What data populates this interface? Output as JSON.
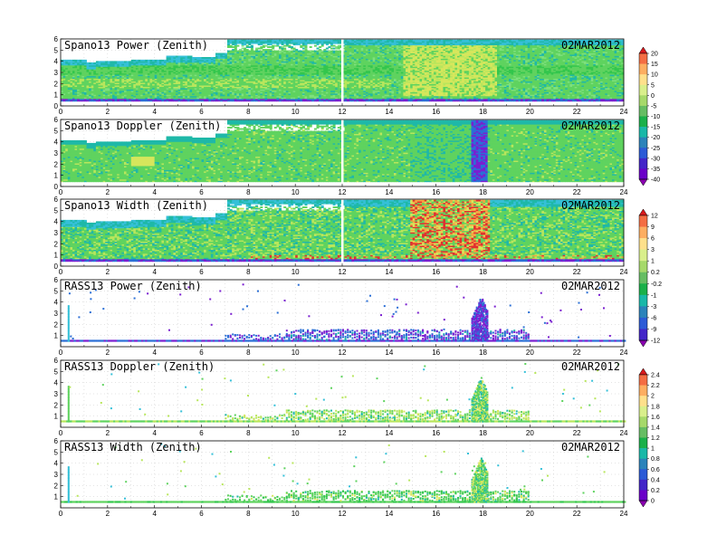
{
  "figure": {
    "date_label": "02MAR2012"
  },
  "chart_data": [
    {
      "type": "heatmap",
      "title": "Spano13 Power (Zenith)",
      "date": "02MAR2012",
      "x": {
        "min": 0,
        "max": 24,
        "ticks": [
          0,
          2,
          4,
          6,
          8,
          10,
          12,
          14,
          16,
          18,
          20,
          22,
          24
        ]
      },
      "y": {
        "min": 0,
        "max": 6,
        "ticks": [
          0,
          1,
          2,
          3,
          4,
          5,
          6
        ]
      },
      "colorbar": "cb1",
      "pattern": "spano_power"
    },
    {
      "type": "heatmap",
      "title": "Spano13 Doppler (Zenith)",
      "date": "02MAR2012",
      "x": {
        "min": 0,
        "max": 24,
        "ticks": [
          0,
          2,
          4,
          6,
          8,
          10,
          12,
          14,
          16,
          18,
          20,
          22,
          24
        ]
      },
      "y": {
        "min": 0,
        "max": 6,
        "ticks": [
          0,
          1,
          2,
          3,
          4,
          5,
          6
        ]
      },
      "colorbar": "cb1",
      "pattern": "spano_doppler"
    },
    {
      "type": "heatmap",
      "title": "Spano13 Width (Zenith)",
      "date": "02MAR2012",
      "x": {
        "min": 0,
        "max": 24,
        "ticks": [
          0,
          2,
          4,
          6,
          8,
          10,
          12,
          14,
          16,
          18,
          20,
          22,
          24
        ]
      },
      "y": {
        "min": 0,
        "max": 6,
        "ticks": [
          0,
          1,
          2,
          3,
          4,
          5,
          6
        ]
      },
      "colorbar": "cb2",
      "pattern": "spano_width"
    },
    {
      "type": "heatmap",
      "title": "RASS13 Power (Zenith)",
      "date": "02MAR2012",
      "x": {
        "min": 0,
        "max": 24,
        "ticks": [
          0,
          2,
          4,
          6,
          8,
          10,
          12,
          14,
          16,
          18,
          20,
          22,
          24
        ]
      },
      "y": {
        "min": 0,
        "max": 6,
        "ticks": [
          1,
          2,
          3,
          4,
          5,
          6
        ]
      },
      "colorbar": "cb2",
      "pattern": "rass_power"
    },
    {
      "type": "heatmap",
      "title": "RASS13 Doppler (Zenith)",
      "date": "02MAR2012",
      "x": {
        "min": 0,
        "max": 24,
        "ticks": [
          0,
          2,
          4,
          6,
          8,
          10,
          12,
          14,
          16,
          18,
          20,
          22,
          24
        ]
      },
      "y": {
        "min": 0,
        "max": 6,
        "ticks": [
          1,
          2,
          3,
          4,
          5,
          6
        ]
      },
      "colorbar": "cb3",
      "pattern": "rass_doppler"
    },
    {
      "type": "heatmap",
      "title": "RASS13 Width (Zenith)",
      "date": "02MAR2012",
      "x": {
        "min": 0,
        "max": 24,
        "ticks": [
          0,
          2,
          4,
          6,
          8,
          10,
          12,
          14,
          16,
          18,
          20,
          22,
          24
        ]
      },
      "y": {
        "min": 0,
        "max": 6,
        "ticks": [
          1,
          2,
          3,
          4,
          5,
          6
        ]
      },
      "colorbar": "cb3",
      "pattern": "rass_width"
    }
  ],
  "colorbars": {
    "cb1": {
      "labels": [
        "20",
        "15",
        "10",
        "5",
        "0",
        "-5",
        "-10",
        "-15",
        "-20",
        "-25",
        "-30",
        "-35",
        "-40"
      ],
      "colors": [
        "#d7191c",
        "#f46d43",
        "#fdae61",
        "#fee08b",
        "#d9ef8b",
        "#a6d96a",
        "#66bd63",
        "#1ab04a",
        "#19b8a8",
        "#2b83ba",
        "#2c5bd6",
        "#4326c8",
        "#6a00c8",
        "#8a00b0"
      ]
    },
    "cb2": {
      "labels": [
        "12",
        "9",
        "6",
        "3",
        "1",
        "0.2",
        "-0.2",
        "-1",
        "-3",
        "-6",
        "-9",
        "-12"
      ],
      "colors": [
        "#d7191c",
        "#f46d43",
        "#fdae61",
        "#fee08b",
        "#d9ef8b",
        "#a6d96a",
        "#66bd63",
        "#1ab04a",
        "#19b8a8",
        "#2b83ba",
        "#2c5bd6",
        "#4326c8",
        "#8a00b0"
      ]
    },
    "cb3": {
      "labels": [
        "2.4",
        "2.2",
        "2",
        "1.8",
        "1.6",
        "1.4",
        "1.2",
        "1",
        "0.8",
        "0.6",
        "0.4",
        "0.2",
        "0"
      ],
      "colors": [
        "#d7191c",
        "#f46d43",
        "#fdae61",
        "#fee08b",
        "#d9ef8b",
        "#a6d96a",
        "#66bd63",
        "#1ab04a",
        "#19b8a8",
        "#2b83ba",
        "#2c5bd6",
        "#4326c8",
        "#6a00c8",
        "#8a00b0"
      ]
    }
  }
}
